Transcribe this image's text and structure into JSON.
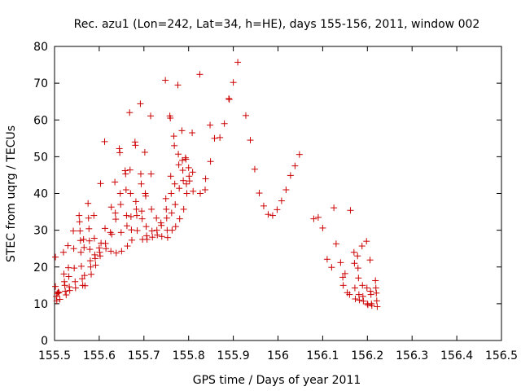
{
  "chart_data": {
    "type": "scatter",
    "title": "Rec. azu1 (Lon=242, Lat=34, h=HE), days 155-156, 2011, window 002",
    "xlabel": "GPS time / Days of year 2011",
    "ylabel": "STEC from uqrg / TECUs",
    "xlim": [
      155.5,
      156.5
    ],
    "ylim": [
      0,
      80
    ],
    "xticks": [
      155.5,
      155.6,
      155.7,
      155.8,
      155.9,
      156.0,
      156.1,
      156.2,
      156.3,
      156.4,
      156.5
    ],
    "xtick_labels": [
      "155.5",
      "155.6",
      "155.7",
      "155.8",
      "155.9",
      "156",
      "156.1",
      "156.2",
      "156.3",
      "156.4",
      "156.5"
    ],
    "yticks": [
      0,
      10,
      20,
      30,
      40,
      50,
      60,
      70,
      80
    ],
    "ytick_labels": [
      "0",
      "10",
      "20",
      "30",
      "40",
      "50",
      "60",
      "70",
      "80"
    ],
    "grid": false,
    "marker": "+",
    "color": "#cc0000",
    "points": [
      [
        155.502,
        22.7
      ],
      [
        155.502,
        14.7
      ],
      [
        155.504,
        12.0
      ],
      [
        155.505,
        10.8
      ],
      [
        155.506,
        12.8
      ],
      [
        155.508,
        13.2
      ],
      [
        155.51,
        13.0
      ],
      [
        155.512,
        11.2
      ],
      [
        155.52,
        24.0
      ],
      [
        155.521,
        18.1
      ],
      [
        155.522,
        16.0
      ],
      [
        155.523,
        15.0
      ],
      [
        155.524,
        13.4
      ],
      [
        155.526,
        12.4
      ],
      [
        155.53,
        25.8
      ],
      [
        155.531,
        19.8
      ],
      [
        155.532,
        17.4
      ],
      [
        155.533,
        14.6
      ],
      [
        155.534,
        13.6
      ],
      [
        155.542,
        29.8
      ],
      [
        155.543,
        25.0
      ],
      [
        155.544,
        19.7
      ],
      [
        155.546,
        16.0
      ],
      [
        155.547,
        14.3
      ],
      [
        155.555,
        34.0
      ],
      [
        155.556,
        32.3
      ],
      [
        155.557,
        29.8
      ],
      [
        155.558,
        27.2
      ],
      [
        155.559,
        24.0
      ],
      [
        155.56,
        20.2
      ],
      [
        155.562,
        16.8
      ],
      [
        155.563,
        15.0
      ],
      [
        155.565,
        27.5
      ],
      [
        155.566,
        25.3
      ],
      [
        155.567,
        17.7
      ],
      [
        155.568,
        14.9
      ],
      [
        155.575,
        37.3
      ],
      [
        155.576,
        33.3
      ],
      [
        155.577,
        30.4
      ],
      [
        155.578,
        27.1
      ],
      [
        155.579,
        24.8
      ],
      [
        155.58,
        21.7
      ],
      [
        155.581,
        20.0
      ],
      [
        155.582,
        18.0
      ],
      [
        155.588,
        34.0
      ],
      [
        155.589,
        27.8
      ],
      [
        155.59,
        23.3
      ],
      [
        155.591,
        22.3
      ],
      [
        155.592,
        20.5
      ],
      [
        155.6,
        25.2
      ],
      [
        155.601,
        24.0
      ],
      [
        155.602,
        23.0
      ],
      [
        155.603,
        42.7
      ],
      [
        155.604,
        26.5
      ],
      [
        155.612,
        54.1
      ],
      [
        155.613,
        30.5
      ],
      [
        155.614,
        26.4
      ],
      [
        155.615,
        25.0
      ],
      [
        155.625,
        29.4
      ],
      [
        155.626,
        24.3
      ],
      [
        155.627,
        36.3
      ],
      [
        155.628,
        28.9
      ],
      [
        155.635,
        43.1
      ],
      [
        155.636,
        34.7
      ],
      [
        155.637,
        33.0
      ],
      [
        155.638,
        23.8
      ],
      [
        155.645,
        52.2
      ],
      [
        155.646,
        51.1
      ],
      [
        155.647,
        40.0
      ],
      [
        155.648,
        37.0
      ],
      [
        155.649,
        29.4
      ],
      [
        155.65,
        24.3
      ],
      [
        155.658,
        46.2
      ],
      [
        155.659,
        45.3
      ],
      [
        155.66,
        41.0
      ],
      [
        155.661,
        34.0
      ],
      [
        155.662,
        31.2
      ],
      [
        155.663,
        25.7
      ],
      [
        155.668,
        62.0
      ],
      [
        155.669,
        46.4
      ],
      [
        155.67,
        40.0
      ],
      [
        155.671,
        33.7
      ],
      [
        155.672,
        30.1
      ],
      [
        155.673,
        27.3
      ],
      [
        155.68,
        54.0
      ],
      [
        155.681,
        53.1
      ],
      [
        155.682,
        37.8
      ],
      [
        155.683,
        35.7
      ],
      [
        155.684,
        34.0
      ],
      [
        155.685,
        29.9
      ],
      [
        155.692,
        64.4
      ],
      [
        155.693,
        45.3
      ],
      [
        155.694,
        42.6
      ],
      [
        155.695,
        35.2
      ],
      [
        155.696,
        33.1
      ],
      [
        155.697,
        27.5
      ],
      [
        155.702,
        51.2
      ],
      [
        155.703,
        40.0
      ],
      [
        155.704,
        39.3
      ],
      [
        155.705,
        31.0
      ],
      [
        155.706,
        28.5
      ],
      [
        155.707,
        27.5
      ],
      [
        155.715,
        61.1
      ],
      [
        155.716,
        45.3
      ],
      [
        155.717,
        35.7
      ],
      [
        155.718,
        29.8
      ],
      [
        155.719,
        28.1
      ],
      [
        155.728,
        33.3
      ],
      [
        155.729,
        30.0
      ],
      [
        155.73,
        28.7
      ],
      [
        155.738,
        32.0
      ],
      [
        155.739,
        31.3
      ],
      [
        155.74,
        28.3
      ],
      [
        155.748,
        70.8
      ],
      [
        155.749,
        38.6
      ],
      [
        155.75,
        35.7
      ],
      [
        155.751,
        33.3
      ],
      [
        155.752,
        30.0
      ],
      [
        155.753,
        28.0
      ],
      [
        155.758,
        61.1
      ],
      [
        155.759,
        60.5
      ],
      [
        155.76,
        44.7
      ],
      [
        155.761,
        40.0
      ],
      [
        155.762,
        34.7
      ],
      [
        155.763,
        30.0
      ],
      [
        155.767,
        55.6
      ],
      [
        155.768,
        53.0
      ],
      [
        155.769,
        42.6
      ],
      [
        155.77,
        37.0
      ],
      [
        155.771,
        31.0
      ],
      [
        155.776,
        69.5
      ],
      [
        155.777,
        50.7
      ],
      [
        155.778,
        47.8
      ],
      [
        155.779,
        41.4
      ],
      [
        155.78,
        33.1
      ],
      [
        155.785,
        57.1
      ],
      [
        155.786,
        49.0
      ],
      [
        155.787,
        46.3
      ],
      [
        155.788,
        43.5
      ],
      [
        155.789,
        35.7
      ],
      [
        155.793,
        49.7
      ],
      [
        155.794,
        49.3
      ],
      [
        155.795,
        42.6
      ],
      [
        155.796,
        40.0
      ],
      [
        155.8,
        47.0
      ],
      [
        155.801,
        44.7
      ],
      [
        155.802,
        43.4
      ],
      [
        155.808,
        56.5
      ],
      [
        155.809,
        45.8
      ],
      [
        155.81,
        40.6
      ],
      [
        155.825,
        72.4
      ],
      [
        155.826,
        40.0
      ],
      [
        155.837,
        41.0
      ],
      [
        155.838,
        44.0
      ],
      [
        155.848,
        58.6
      ],
      [
        155.849,
        48.7
      ],
      [
        155.858,
        55.0
      ],
      [
        155.87,
        55.2
      ],
      [
        155.88,
        59.0
      ],
      [
        155.89,
        65.8
      ],
      [
        155.891,
        65.6
      ],
      [
        155.9,
        70.2
      ],
      [
        155.91,
        75.7
      ],
      [
        155.928,
        61.2
      ],
      [
        155.938,
        54.5
      ],
      [
        155.948,
        46.6
      ],
      [
        155.958,
        40.1
      ],
      [
        155.968,
        36.6
      ],
      [
        155.978,
        34.3
      ],
      [
        155.988,
        34.0
      ],
      [
        155.998,
        35.6
      ],
      [
        156.008,
        38.0
      ],
      [
        156.018,
        41.0
      ],
      [
        156.028,
        44.9
      ],
      [
        156.038,
        47.5
      ],
      [
        156.048,
        50.6
      ],
      [
        156.08,
        33.1
      ],
      [
        156.09,
        33.5
      ],
      [
        156.1,
        30.6
      ],
      [
        156.11,
        22.1
      ],
      [
        156.12,
        19.9
      ],
      [
        156.125,
        36.1
      ],
      [
        156.13,
        26.3
      ],
      [
        156.14,
        21.2
      ],
      [
        156.145,
        17.2
      ],
      [
        156.146,
        15.0
      ],
      [
        156.15,
        18.2
      ],
      [
        156.155,
        13.0
      ],
      [
        156.16,
        12.5
      ],
      [
        156.162,
        35.4
      ],
      [
        156.17,
        24.0
      ],
      [
        156.171,
        21.0
      ],
      [
        156.172,
        14.3
      ],
      [
        156.173,
        11.3
      ],
      [
        156.178,
        23.0
      ],
      [
        156.179,
        19.7
      ],
      [
        156.18,
        17.0
      ],
      [
        156.181,
        12.5
      ],
      [
        156.182,
        11.0
      ],
      [
        156.188,
        25.7
      ],
      [
        156.189,
        15.0
      ],
      [
        156.19,
        12.0
      ],
      [
        156.191,
        10.7
      ],
      [
        156.198,
        27.0
      ],
      [
        156.199,
        14.3
      ],
      [
        156.2,
        10.0
      ],
      [
        156.201,
        9.7
      ],
      [
        156.206,
        21.9
      ],
      [
        156.207,
        13.4
      ],
      [
        156.208,
        12.5
      ],
      [
        156.209,
        10.0
      ],
      [
        156.21,
        9.5
      ],
      [
        156.218,
        16.3
      ],
      [
        156.219,
        14.3
      ],
      [
        156.22,
        12.9
      ],
      [
        156.221,
        10.8
      ],
      [
        156.222,
        9.2
      ]
    ]
  }
}
